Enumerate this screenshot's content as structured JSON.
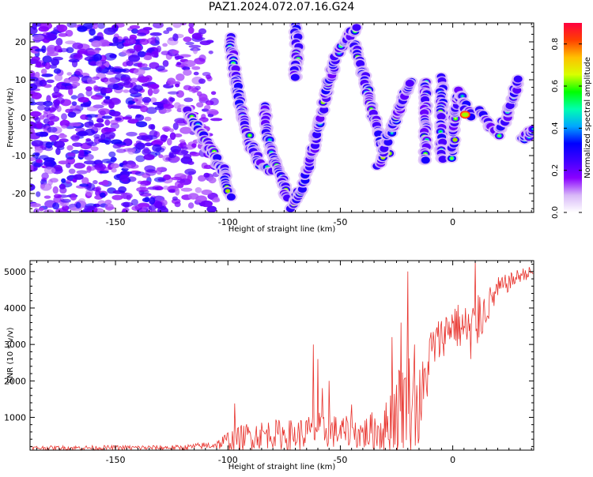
{
  "title": "PAZ1.2024.072.07.16.G24",
  "chart_data": [
    {
      "type": "heatmap",
      "xlabel": "Height of straight line (km)",
      "ylabel": "Frequency (Hz)",
      "xlim": [
        -188,
        36
      ],
      "ylim": [
        -25,
        25
      ],
      "xticks": [
        -150,
        -100,
        -50,
        0
      ],
      "yticks": [
        -20,
        -10,
        0,
        10,
        20
      ],
      "colorbar": {
        "label": "Normalized spectral amplitude",
        "range": [
          0,
          0.9
        ],
        "ticks": [
          "0.0",
          "0.2",
          "0.4",
          "0.6",
          "0.8"
        ],
        "colormap": [
          "#ffffff",
          "#d8b8f8",
          "#8a00ff",
          "#3f00ff",
          "#0000ff",
          "#00a8ff",
          "#00ffb0",
          "#00ff00",
          "#d8ff00",
          "#ffc000",
          "#ff4000",
          "#ff0040"
        ]
      },
      "tracks": [
        {
          "name": "descending-1",
          "points": [
            [
              -118,
              2
            ],
            [
              -112,
              -4
            ],
            [
              -106,
              -10
            ],
            [
              -102,
              -14
            ],
            [
              -99,
              -21
            ]
          ]
        },
        {
          "name": "rising-1",
          "points": [
            [
              -99,
              21
            ],
            [
              -97,
              12
            ],
            [
              -94,
              2
            ],
            [
              -90,
              -7
            ],
            [
              -86,
              -12
            ],
            [
              -80,
              -14
            ]
          ]
        },
        {
          "name": "rising-2",
          "points": [
            [
              -84,
              3
            ],
            [
              -82,
              -6
            ],
            [
              -79,
              -12
            ],
            [
              -76,
              -16
            ],
            [
              -74,
              -22
            ]
          ]
        },
        {
          "name": "rising-3",
          "points": [
            [
              -70,
              24
            ],
            [
              -69,
              18
            ],
            [
              -70,
              10
            ]
          ]
        },
        {
          "name": "arc",
          "points": [
            [
              -72,
              -24
            ],
            [
              -66,
              -17
            ],
            [
              -62,
              -8
            ],
            [
              -58,
              2
            ],
            [
              -55,
              10
            ],
            [
              -52,
              16
            ],
            [
              -47,
              21
            ],
            [
              -42,
              24
            ]
          ]
        },
        {
          "name": "arc-down",
          "points": [
            [
              -44,
              20
            ],
            [
              -40,
              12
            ],
            [
              -36,
              2
            ],
            [
              -32,
              -6
            ],
            [
              -28,
              -10
            ]
          ]
        },
        {
          "name": "arc-up",
          "points": [
            [
              -33,
              -12
            ],
            [
              -29,
              -6
            ],
            [
              -24,
              2
            ],
            [
              -20,
              8
            ],
            [
              -18,
              10
            ]
          ]
        },
        {
          "name": "vertical-a",
          "points": [
            [
              -12,
              10
            ],
            [
              -12,
              -12
            ]
          ]
        },
        {
          "name": "vertical-b",
          "points": [
            [
              -5,
              10
            ],
            [
              -5,
              -12
            ]
          ]
        },
        {
          "name": "bump",
          "points": [
            [
              0,
              -10
            ],
            [
              1,
              2
            ],
            [
              3,
              7
            ],
            [
              6,
              2
            ],
            [
              9,
              0
            ]
          ]
        },
        {
          "name": "cluster",
          "points": [
            [
              12,
              2
            ],
            [
              16,
              -2
            ],
            [
              20,
              -4
            ],
            [
              24,
              0
            ],
            [
              28,
              8
            ],
            [
              30,
              10
            ]
          ]
        },
        {
          "name": "tail",
          "points": [
            [
              31,
              -6
            ],
            [
              34,
              -4
            ],
            [
              36,
              -3
            ]
          ]
        }
      ]
    },
    {
      "type": "line",
      "xlabel": "Height of straight line (km)",
      "ylabel": "SNR (10 * v/v)",
      "xlim": [
        -188,
        36
      ],
      "ylim": [
        100,
        5300
      ],
      "xticks": [
        -150,
        -100,
        -50,
        0
      ],
      "yticks": [
        1000,
        2000,
        3000,
        4000,
        5000
      ],
      "color": "#e8332d",
      "envelope": {
        "x": [
          -188,
          -120,
          -105,
          -100,
          -90,
          -80,
          -70,
          -60,
          -50,
          -40,
          -30,
          -25,
          -20,
          -15,
          -12,
          -10,
          -5,
          0,
          5,
          10,
          15,
          20,
          25,
          30,
          36
        ],
        "base": [
          160,
          170,
          250,
          350,
          500,
          550,
          500,
          650,
          600,
          550,
          700,
          1200,
          1500,
          1200,
          2000,
          2800,
          3200,
          3600,
          3400,
          3500,
          4000,
          4500,
          4700,
          4900,
          5000
        ],
        "amp": [
          60,
          70,
          120,
          300,
          400,
          400,
          450,
          500,
          450,
          450,
          700,
          1200,
          1400,
          1200,
          900,
          700,
          600,
          600,
          700,
          800,
          500,
          350,
          250,
          200,
          150
        ]
      },
      "spikes": [
        [
          -97,
          1380
        ],
        [
          -62,
          3000
        ],
        [
          -60,
          2600
        ],
        [
          -58,
          1800
        ],
        [
          -27,
          3200
        ],
        [
          -23,
          3600
        ],
        [
          -20,
          5000
        ],
        [
          -17,
          3000
        ],
        [
          -13,
          1500
        ],
        [
          10,
          5300
        ],
        [
          12,
          4300
        ],
        [
          8,
          2600
        ],
        [
          -45,
          1350
        ],
        [
          -55,
          2000
        ]
      ]
    }
  ]
}
